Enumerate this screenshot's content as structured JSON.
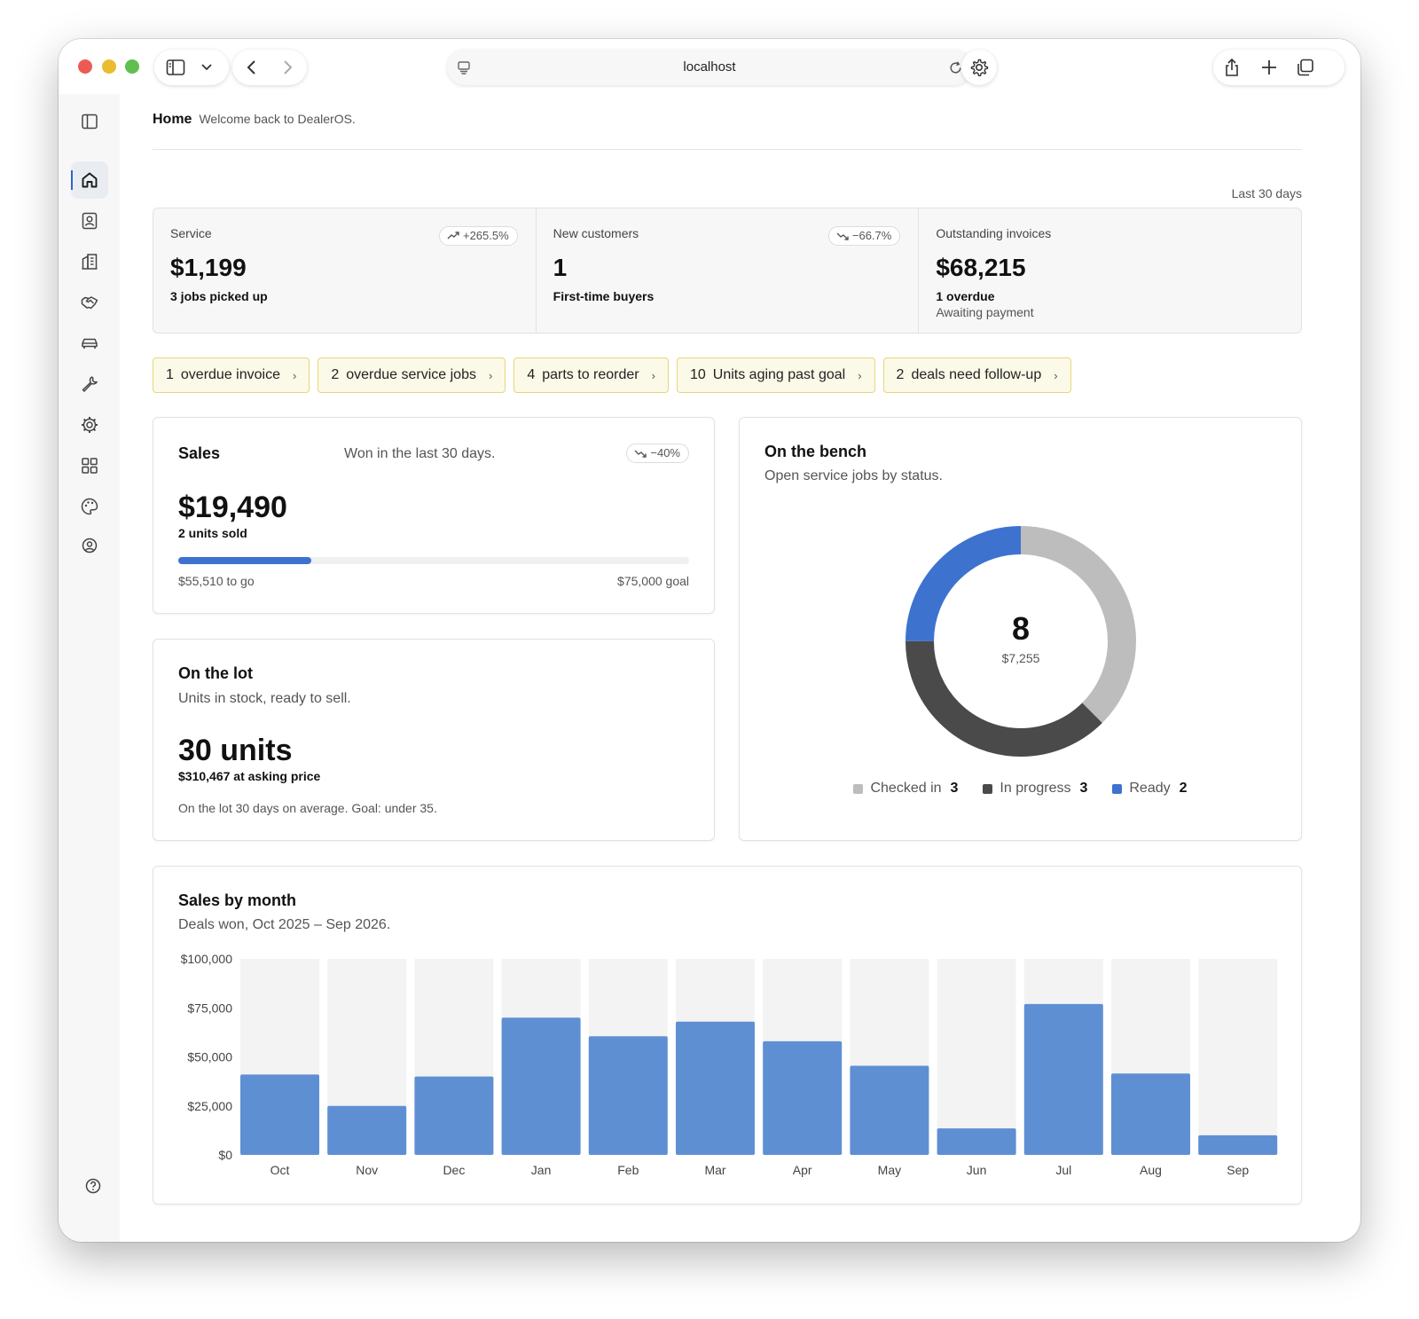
{
  "browser": {
    "url": "localhost"
  },
  "header": {
    "title": "Home",
    "subtitle": "Welcome back to DealerOS."
  },
  "range": "Last 30 days",
  "kpis": [
    {
      "label": "Service",
      "value": "$1,199",
      "note": "3 jobs picked up",
      "note2": "",
      "trend": "+265.5%",
      "trend_dir": "up"
    },
    {
      "label": "New customers",
      "value": "1",
      "note": "First-time buyers",
      "note2": "",
      "trend": "−66.7%",
      "trend_dir": "down"
    },
    {
      "label": "Outstanding invoices",
      "value": "$68,215",
      "note": "1 overdue",
      "note2": "Awaiting payment",
      "trend": "",
      "trend_dir": ""
    }
  ],
  "alerts": [
    {
      "count": "1",
      "label": "overdue invoice"
    },
    {
      "count": "2",
      "label": "overdue service jobs"
    },
    {
      "count": "4",
      "label": "parts to reorder"
    },
    {
      "count": "10",
      "label": "Units aging past goal"
    },
    {
      "count": "2",
      "label": "deals need follow-up"
    }
  ],
  "sales": {
    "title": "Sales",
    "subtitle": "Won in the last 30 days.",
    "trend": "−40%",
    "value": "$19,490",
    "note": "2 units sold",
    "remaining": "$55,510 to go",
    "goal": "$75,000 goal",
    "progress": 0.26
  },
  "lot": {
    "title": "On the lot",
    "subtitle": "Units in stock, ready to sell.",
    "value": "30 units",
    "note": "$310,467 at asking price",
    "footer": "On the lot 30 days on average. Goal: under 35."
  },
  "bench": {
    "title": "On the bench",
    "subtitle": "Open service jobs by status.",
    "total": "8",
    "total_value": "$7,255",
    "statuses": [
      {
        "label": "Checked in",
        "count": 3,
        "color": "#bdbdbd"
      },
      {
        "label": "In progress",
        "count": 3,
        "color": "#4a4a4a"
      },
      {
        "label": "Ready",
        "count": 2,
        "color": "#3d73cf"
      }
    ]
  },
  "chart_data": {
    "type": "bar",
    "title": "Sales by month",
    "subtitle": "Deals won, Oct 2025 – Sep 2026.",
    "categories": [
      "Oct",
      "Nov",
      "Dec",
      "Jan",
      "Feb",
      "Mar",
      "Apr",
      "May",
      "Jun",
      "Jul",
      "Aug",
      "Sep"
    ],
    "values": [
      41000,
      25000,
      40000,
      70000,
      60500,
      68000,
      58000,
      45500,
      13500,
      77000,
      41500,
      10000
    ],
    "y_ticks": [
      "$100,000",
      "$75,000",
      "$50,000",
      "$25,000",
      "$0"
    ],
    "ylim": [
      0,
      100000
    ],
    "bar_color": "#5f8fd3",
    "track_color": "#f3f3f3",
    "grid": false
  }
}
